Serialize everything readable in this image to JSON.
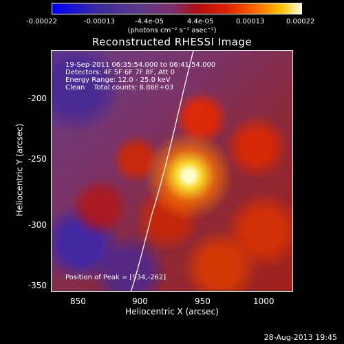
{
  "colorbar": {
    "ticks": [
      "-0.00022",
      "-0.00013",
      "-4.4e-05",
      "4.4e-05",
      "0.00013",
      "0.00022"
    ],
    "units_label": "(photons cm⁻² s⁻¹ asec⁻²)"
  },
  "title": "Reconstructed RHESSI Image",
  "annotations": {
    "time_range": "19-Sep-2011 06:35:54.000 to 06:41:54.000",
    "detectors": "Detectors: 4F 5F 6F 7F 8F, Att 0",
    "energy": "Energy Range: 12.0 - 25.0 keV",
    "clean": "Clean    Total counts: 8.86E+03",
    "peak": "Position of Peak = [934,-262]"
  },
  "axes": {
    "x_label": "Heliocentric X (arcsec)",
    "y_label": "Heliocentric Y (arcsec)",
    "x_ticks": [
      "850",
      "900",
      "950",
      "1000"
    ],
    "y_ticks": [
      "-200",
      "-250",
      "-300",
      "-350"
    ]
  },
  "footer_date": "28-Aug-2013 19:45"
}
